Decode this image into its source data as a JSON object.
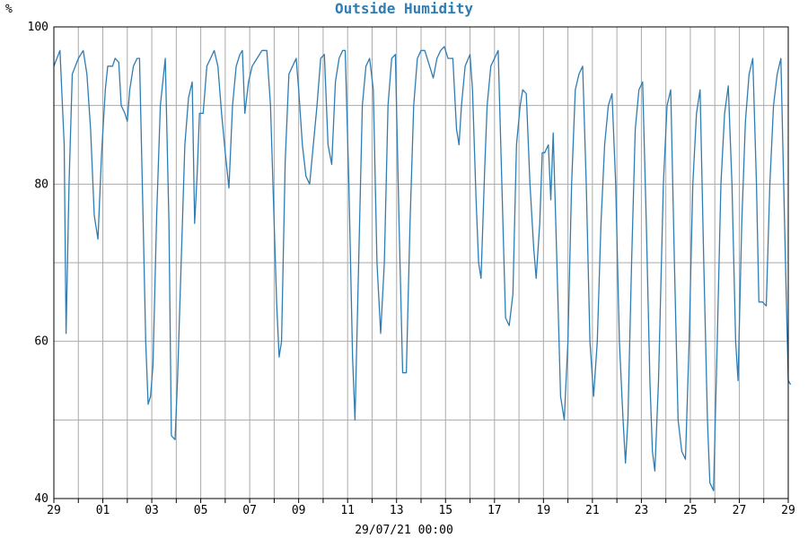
{
  "chart_data": {
    "type": "line",
    "title": "Outside Humidity",
    "ylabel": "%",
    "xlabel": "29/07/21 00:00",
    "ylim": [
      40,
      100
    ],
    "y_ticks": [
      40,
      60,
      80,
      100
    ],
    "grid": true,
    "colors": {
      "line": "#2f7db3",
      "title": "#2f7db3",
      "grid": "#aaaaaa",
      "axis": "#000000"
    },
    "x_tick_labels": [
      "29",
      "01",
      "03",
      "05",
      "07",
      "09",
      "11",
      "13",
      "15",
      "17",
      "19",
      "21",
      "23",
      "25",
      "27",
      "29"
    ],
    "days_span": 30,
    "series": [
      {
        "values": [
          [
            0.0,
            95
          ],
          [
            0.25,
            97
          ],
          [
            0.42,
            85
          ],
          [
            0.5,
            61
          ],
          [
            0.62,
            80
          ],
          [
            0.75,
            94
          ],
          [
            1.0,
            96
          ],
          [
            1.2,
            97
          ],
          [
            1.35,
            94
          ],
          [
            1.5,
            87
          ],
          [
            1.65,
            76
          ],
          [
            1.8,
            73
          ],
          [
            1.95,
            84
          ],
          [
            2.1,
            92
          ],
          [
            2.2,
            95
          ],
          [
            2.4,
            95
          ],
          [
            2.5,
            96
          ],
          [
            2.65,
            95.5
          ],
          [
            2.75,
            90
          ],
          [
            2.9,
            89
          ],
          [
            3.0,
            88
          ],
          [
            3.1,
            92
          ],
          [
            3.25,
            95
          ],
          [
            3.4,
            96
          ],
          [
            3.5,
            96
          ],
          [
            3.65,
            75
          ],
          [
            3.75,
            60
          ],
          [
            3.85,
            52
          ],
          [
            3.95,
            53
          ],
          [
            4.05,
            57
          ],
          [
            4.2,
            76
          ],
          [
            4.35,
            90
          ],
          [
            4.55,
            96
          ],
          [
            4.7,
            75
          ],
          [
            4.8,
            48
          ],
          [
            4.95,
            47.5
          ],
          [
            5.05,
            55
          ],
          [
            5.2,
            70
          ],
          [
            5.35,
            85
          ],
          [
            5.5,
            91
          ],
          [
            5.65,
            93
          ],
          [
            5.75,
            75
          ],
          [
            5.85,
            81
          ],
          [
            5.95,
            89
          ],
          [
            6.1,
            89
          ],
          [
            6.25,
            95
          ],
          [
            6.4,
            96
          ],
          [
            6.55,
            97
          ],
          [
            6.7,
            95
          ],
          [
            6.85,
            89
          ],
          [
            7.0,
            84
          ],
          [
            7.15,
            79.5
          ],
          [
            7.3,
            90
          ],
          [
            7.45,
            95
          ],
          [
            7.6,
            96.5
          ],
          [
            7.7,
            97
          ],
          [
            7.8,
            89
          ],
          [
            7.95,
            93
          ],
          [
            8.1,
            95
          ],
          [
            8.3,
            96
          ],
          [
            8.5,
            97
          ],
          [
            8.7,
            97
          ],
          [
            8.85,
            90
          ],
          [
            9.0,
            75
          ],
          [
            9.1,
            65
          ],
          [
            9.2,
            58
          ],
          [
            9.3,
            60
          ],
          [
            9.45,
            83
          ],
          [
            9.6,
            94
          ],
          [
            9.75,
            95
          ],
          [
            9.9,
            96
          ],
          [
            10.0,
            92
          ],
          [
            10.15,
            85
          ],
          [
            10.3,
            81
          ],
          [
            10.45,
            80
          ],
          [
            10.6,
            85
          ],
          [
            10.75,
            90
          ],
          [
            10.9,
            96
          ],
          [
            11.05,
            96.5
          ],
          [
            11.2,
            85
          ],
          [
            11.35,
            82.5
          ],
          [
            11.5,
            93
          ],
          [
            11.65,
            96
          ],
          [
            11.8,
            97
          ],
          [
            11.9,
            97
          ],
          [
            12.05,
            80
          ],
          [
            12.2,
            58
          ],
          [
            12.3,
            50
          ],
          [
            12.45,
            70
          ],
          [
            12.6,
            90
          ],
          [
            12.75,
            95
          ],
          [
            12.9,
            96
          ],
          [
            13.05,
            92
          ],
          [
            13.2,
            70
          ],
          [
            13.35,
            61
          ],
          [
            13.5,
            70
          ],
          [
            13.65,
            90
          ],
          [
            13.8,
            96
          ],
          [
            13.95,
            96.5
          ],
          [
            14.1,
            75
          ],
          [
            14.25,
            56
          ],
          [
            14.4,
            56
          ],
          [
            14.55,
            75
          ],
          [
            14.7,
            90
          ],
          [
            14.85,
            96
          ],
          [
            15.0,
            97
          ],
          [
            15.15,
            97
          ],
          [
            15.3,
            95.5
          ],
          [
            15.5,
            93.5
          ],
          [
            15.65,
            96
          ],
          [
            15.8,
            97
          ],
          [
            15.95,
            97.5
          ],
          [
            16.1,
            96
          ],
          [
            16.3,
            96
          ],
          [
            16.45,
            87
          ],
          [
            16.55,
            85
          ],
          [
            16.65,
            90
          ],
          [
            16.8,
            95
          ],
          [
            17.0,
            96.5
          ],
          [
            17.1,
            92
          ],
          [
            17.25,
            78
          ],
          [
            17.35,
            70
          ],
          [
            17.45,
            68
          ],
          [
            17.6,
            82
          ],
          [
            17.7,
            90
          ],
          [
            17.85,
            95
          ],
          [
            18.0,
            96
          ],
          [
            18.15,
            97
          ],
          [
            18.3,
            80
          ],
          [
            18.45,
            63
          ],
          [
            18.6,
            62
          ],
          [
            18.75,
            66
          ],
          [
            18.9,
            85
          ],
          [
            19.05,
            90
          ],
          [
            19.15,
            92
          ],
          [
            19.3,
            91.5
          ],
          [
            19.45,
            80
          ],
          [
            19.6,
            72
          ],
          [
            19.7,
            68
          ],
          [
            19.85,
            75
          ],
          [
            19.95,
            84
          ],
          [
            20.05,
            84
          ],
          [
            20.2,
            85
          ],
          [
            20.3,
            78
          ],
          [
            20.4,
            86.5
          ],
          [
            20.55,
            70
          ],
          [
            20.7,
            53
          ],
          [
            20.85,
            50
          ],
          [
            21.0,
            60
          ],
          [
            21.15,
            80
          ],
          [
            21.3,
            92
          ],
          [
            21.45,
            94
          ],
          [
            21.6,
            95
          ],
          [
            21.75,
            80
          ],
          [
            21.9,
            60
          ],
          [
            22.05,
            53
          ],
          [
            22.2,
            60
          ],
          [
            22.35,
            75
          ],
          [
            22.5,
            85
          ],
          [
            22.65,
            90
          ],
          [
            22.8,
            91.5
          ],
          [
            22.95,
            80
          ],
          [
            23.1,
            60
          ],
          [
            23.25,
            50
          ],
          [
            23.35,
            44.5
          ],
          [
            23.45,
            50
          ],
          [
            23.6,
            70
          ],
          [
            23.75,
            87
          ],
          [
            23.9,
            92
          ],
          [
            24.05,
            93
          ],
          [
            24.2,
            75
          ],
          [
            24.35,
            55
          ],
          [
            24.45,
            46
          ],
          [
            24.55,
            43.5
          ],
          [
            24.7,
            55
          ],
          [
            24.9,
            80
          ],
          [
            25.05,
            90
          ],
          [
            25.2,
            92
          ],
          [
            25.35,
            70
          ],
          [
            25.5,
            50
          ],
          [
            25.65,
            46
          ],
          [
            25.8,
            45
          ],
          [
            25.95,
            60
          ],
          [
            26.1,
            80
          ],
          [
            26.25,
            89
          ],
          [
            26.4,
            92
          ],
          [
            26.55,
            70
          ],
          [
            26.7,
            50
          ],
          [
            26.8,
            42
          ],
          [
            26.95,
            41
          ],
          [
            27.1,
            60
          ],
          [
            27.25,
            80
          ],
          [
            27.4,
            89
          ],
          [
            27.55,
            92.5
          ],
          [
            27.7,
            80
          ],
          [
            27.85,
            60
          ],
          [
            27.95,
            55
          ],
          [
            28.1,
            75
          ],
          [
            28.25,
            88
          ],
          [
            28.4,
            94
          ],
          [
            28.55,
            96
          ],
          [
            28.7,
            80
          ],
          [
            28.8,
            65
          ],
          [
            28.95,
            65
          ],
          [
            29.1,
            64.5
          ],
          [
            29.25,
            80
          ],
          [
            29.4,
            90
          ],
          [
            29.55,
            94
          ],
          [
            29.7,
            96
          ],
          [
            29.85,
            75
          ],
          [
            30.0,
            55
          ],
          [
            30.1,
            54.5
          ]
        ]
      }
    ]
  }
}
